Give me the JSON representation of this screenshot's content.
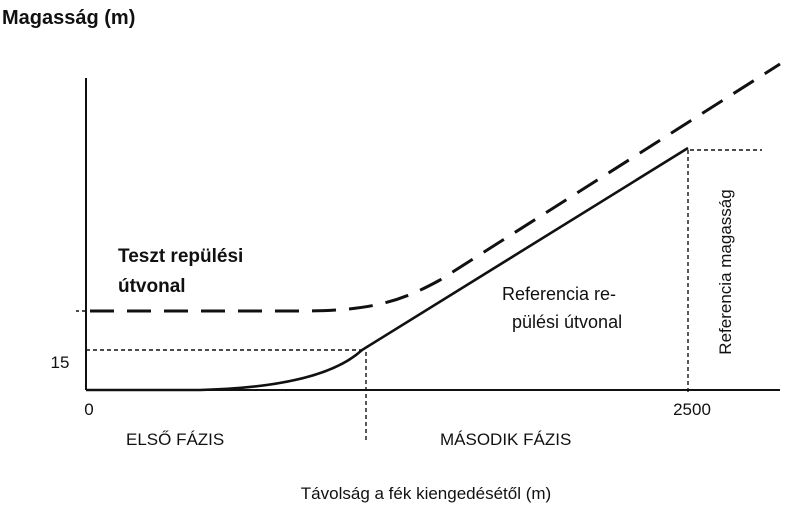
{
  "y_axis": {
    "title": "Magasság (m)",
    "tick_15": "15"
  },
  "x_axis": {
    "title": "Távolság a fék kiengedésétől (m)",
    "tick_0": "0",
    "tick_2500": "2500"
  },
  "phases": {
    "first": "ELSŐ FÁZIS",
    "second": "MÁSODIK FÁZIS"
  },
  "test_path": {
    "line1": "Teszt repülési",
    "line2": "útvonal"
  },
  "reference_path": {
    "line1": "Referencia re-",
    "line2": "pülési útvonal"
  },
  "reference_height": "Referencia magasság",
  "colors": {
    "line": "#111111",
    "background": "#ffffff"
  }
}
